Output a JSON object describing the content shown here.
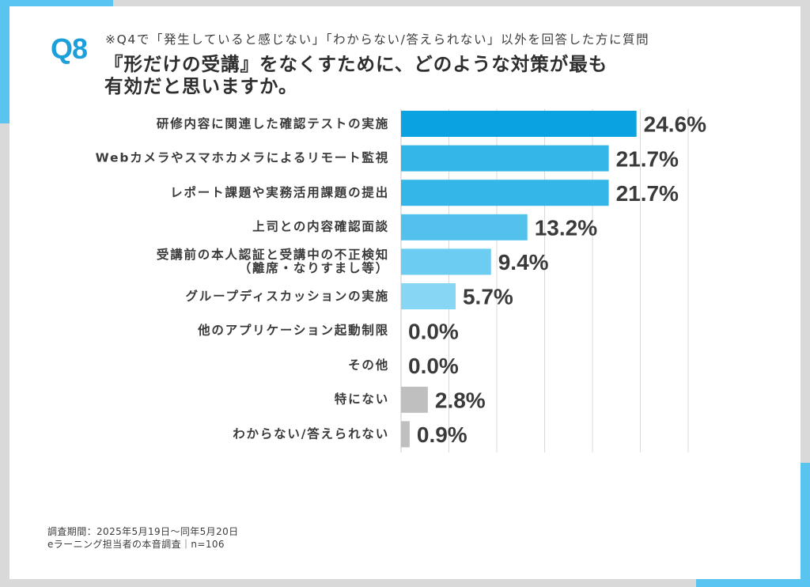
{
  "header": {
    "question_no": "Q8",
    "note": "※Q4で「発生していると感じない」「わからない/答えられない」以外を回答した方に質問",
    "title_lines": [
      "『形だけの受講』をなくすために、どのような対策が最も",
      "有効だと思いますか。"
    ]
  },
  "colors": {
    "accent": "#1c9fdb",
    "frame": "#d9d9d9",
    "frame_accent": "#5ac4f0",
    "text": "#333333",
    "grid": "#d9d9d9"
  },
  "chart_data": {
    "type": "bar",
    "orientation": "horizontal",
    "categories": [
      "研修内容に関連した確認テストの実施",
      "Webカメラやスマホカメラによるリモート監視",
      "レポート課題や実務活用課題の提出",
      "上司との内容確認面談",
      "受講前の本人認証と受講中の不正検知\n（離席・なりすまし等）",
      "グループディスカッションの実施",
      "他のアプリケーション起動制限",
      "その他",
      "特にない",
      "わからない/答えられない"
    ],
    "values": [
      24.6,
      21.7,
      21.7,
      13.2,
      9.4,
      5.7,
      0.0,
      0.0,
      2.8,
      0.9
    ],
    "data_labels": [
      "24.6%",
      "21.7%",
      "21.7%",
      "13.2%",
      "9.4%",
      "5.7%",
      "0.0%",
      "0.0%",
      "2.8%",
      "0.9%"
    ],
    "bar_colors": [
      "#0aa2e0",
      "#35b6e9",
      "#35b6e9",
      "#52c2ed",
      "#6dccf1",
      "#87d6f4",
      null,
      null,
      "#bfbfbf",
      "#bfbfbf"
    ],
    "xlim": [
      0,
      30
    ],
    "grid": true,
    "grid_step": 5,
    "legend": false
  },
  "footer": {
    "period": "調査期間：2025年5月19日〜同年5月20日",
    "source": "eラーニング担当者の本音調査｜n=106"
  }
}
